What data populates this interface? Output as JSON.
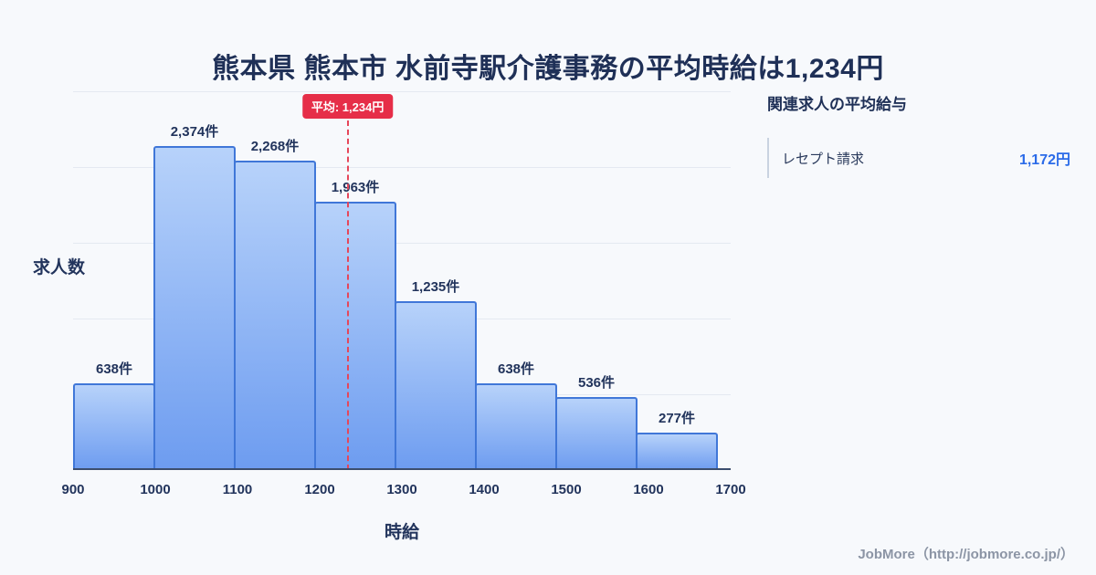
{
  "title": "熊本県 熊本市 水前寺駅介護事務の平均時給は1,234円",
  "chart_data": {
    "type": "bar",
    "title": "熊本県 熊本市 水前寺駅介護事務の平均時給は1,234円",
    "xlabel": "時給",
    "ylabel": "求人数",
    "x_min": 900,
    "x_max": 1700,
    "bin_width": 100,
    "categories": [
      "900-1000",
      "1000-1100",
      "1100-1200",
      "1200-1300",
      "1300-1400",
      "1400-1500",
      "1500-1600",
      "1600-1700"
    ],
    "values": [
      638,
      2374,
      2268,
      1963,
      1235,
      638,
      536,
      277
    ],
    "bar_labels": [
      "638件",
      "2,374件",
      "2,268件",
      "1,963件",
      "1,235件",
      "638件",
      "536件",
      "277件"
    ],
    "x_ticks": [
      "900",
      "1000",
      "1100",
      "1200",
      "1300",
      "1400",
      "1500",
      "1600",
      "1700"
    ],
    "ylim": [
      0,
      2500
    ],
    "grid": "horizontal",
    "legend": "none",
    "average": {
      "value": 1234,
      "label": "平均: 1,234円"
    },
    "colors": {
      "bar_top": "#b7d2fa",
      "bar_bottom": "#6d9cf0",
      "bar_border": "#4077d8",
      "average_line": "#e6465a",
      "badge_bg": "#e62e48"
    }
  },
  "sidebar": {
    "heading": "関連求人の平均給与",
    "items": [
      {
        "label": "レセプト請求",
        "value": "1,172円"
      }
    ]
  },
  "footer": {
    "credit": "JobMore（http://jobmore.co.jp/）"
  }
}
